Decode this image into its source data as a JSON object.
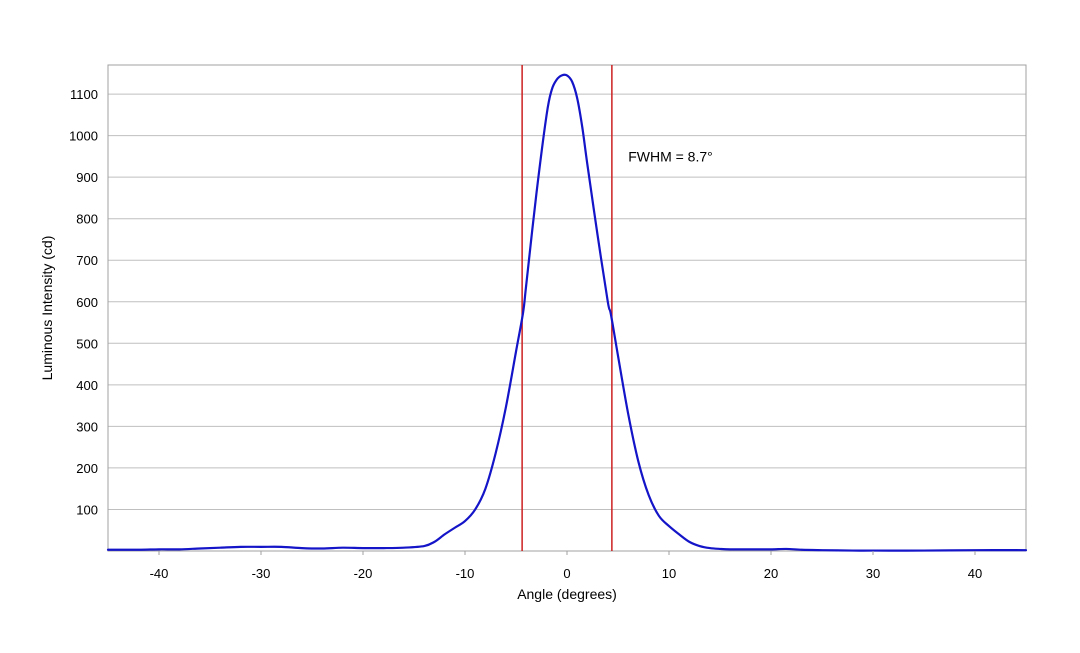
{
  "chart_data": {
    "type": "line",
    "title": "",
    "xlabel": "Angle (degrees)",
    "ylabel": "Luminous Intensity (cd)",
    "xlim": [
      -45,
      45
    ],
    "ylim": [
      0,
      1170
    ],
    "x_ticks": [
      -40,
      -30,
      -20,
      -10,
      0,
      10,
      20,
      30,
      40
    ],
    "x_tick_labels": [
      "-40",
      "-30",
      "-20",
      "-10",
      "0",
      "10",
      "20",
      "30",
      "40"
    ],
    "y_ticks": [
      100,
      200,
      300,
      400,
      500,
      600,
      700,
      800,
      900,
      1000,
      1100
    ],
    "y_tick_labels": [
      "100",
      "200",
      "300",
      "400",
      "500",
      "600",
      "700",
      "800",
      "900",
      "1000",
      "1100"
    ],
    "grid": "horizontal",
    "legend": "none",
    "colors": {
      "series": "#1414c8",
      "marker_lines": "#cc1f1f",
      "grid": "#bfbfbf",
      "frame": "#a0a0a0"
    },
    "series": [
      {
        "x": [
          -45,
          -42,
          -40,
          -38,
          -36,
          -34,
          -32,
          -30,
          -28,
          -26,
          -24,
          -22,
          -20,
          -18,
          -16,
          -14,
          -13,
          -12,
          -11,
          -10,
          -9,
          -8,
          -7,
          -6,
          -5,
          -4.3,
          -4,
          -3,
          -2,
          -1.5,
          -1,
          -0.5,
          0,
          0.5,
          1,
          1.5,
          2,
          3,
          4,
          4.3,
          5,
          6,
          7,
          8,
          9,
          10,
          11,
          12,
          13,
          14,
          15,
          16,
          18,
          20,
          21.5,
          23,
          25,
          28,
          30,
          35,
          40,
          45
        ],
        "y": [
          3,
          3,
          4,
          4,
          6,
          8,
          10,
          10,
          10,
          7,
          6,
          8,
          7,
          7,
          8,
          12,
          22,
          40,
          56,
          72,
          100,
          150,
          235,
          345,
          480,
          575,
          640,
          860,
          1050,
          1110,
          1135,
          1145,
          1145,
          1130,
          1090,
          1020,
          930,
          760,
          600,
          570,
          470,
          330,
          215,
          135,
          85,
          60,
          40,
          22,
          12,
          7,
          5,
          4,
          4,
          4,
          5,
          3,
          2,
          1,
          1,
          1,
          2,
          2
        ]
      }
    ],
    "vertical_lines": [
      -4.4,
      4.4
    ],
    "annotations": [
      {
        "text": "FWHM = 8.7°",
        "x": 6,
        "y": 950
      }
    ]
  }
}
